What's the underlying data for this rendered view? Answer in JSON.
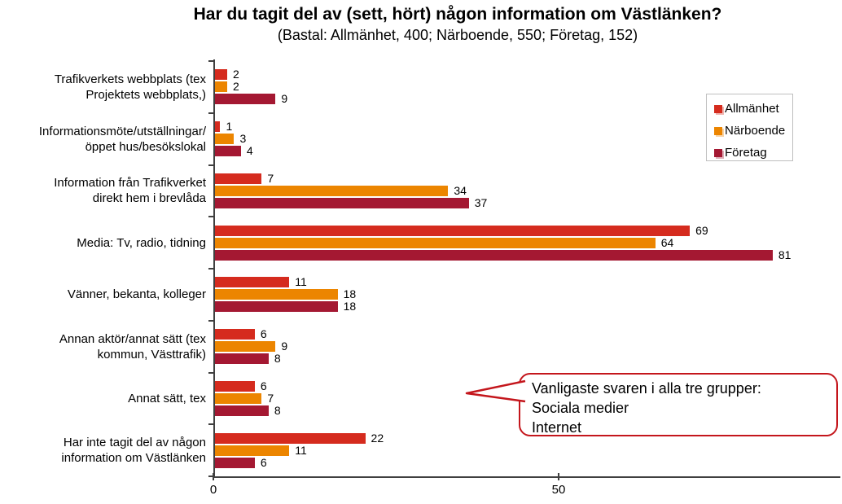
{
  "chart_data": {
    "type": "bar",
    "orientation": "horizontal",
    "title": "Har du tagit del av (sett, hört) någon information om Västlänken?",
    "subtitle": "(Bastal: Allmänhet, 400; Närboende, 550; Företag, 152)",
    "categories": [
      "Trafikverkets webbplats (tex\nProjektets webbplats,)",
      "Informationsmöte/utställningar/\nöppet hus/besökslokal",
      "Information från Trafikverket\ndirekt hem i brevlåda",
      "Media: Tv, radio, tidning",
      "Vänner, bekanta, kolleger",
      "Annan aktör/annat sätt (tex\nkommun, Västtrafik)",
      "Annat sätt, tex",
      "Har inte tagit del av någon\ninformation om Västlänken"
    ],
    "series": [
      {
        "name": "Allmänhet",
        "color": "#D52B1E",
        "values": [
          2,
          1,
          7,
          69,
          11,
          6,
          6,
          22
        ]
      },
      {
        "name": "Närboende",
        "color": "#EC8500",
        "values": [
          2,
          3,
          34,
          64,
          18,
          9,
          7,
          11
        ]
      },
      {
        "name": "Företag",
        "color": "#A41832",
        "values": [
          9,
          4,
          37,
          81,
          18,
          8,
          8,
          6
        ]
      }
    ],
    "xlim": [
      0,
      90.8
    ],
    "x_ticks": [
      0,
      50
    ],
    "grid": false,
    "legend_position": "top-right",
    "annotation": {
      "lines": [
        "Vanligaste svaren i alla tre grupper:",
        "Sociala medier",
        "Internet"
      ]
    }
  }
}
